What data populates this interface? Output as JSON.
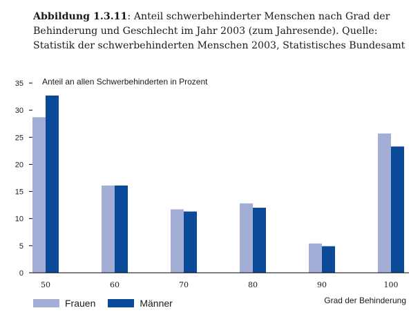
{
  "caption": {
    "label": "Abbildung 1.3.11",
    "text": ": Anteil schwerbehinderter Menschen nach Grad der Behinderung und Geschlecht im Jahr 2003 (zum Jahresende). Quelle: Statistik der schwerbehinderten Menschen 2003, Statistisches Bundesamt"
  },
  "colors": {
    "frauen": "#a3aed6",
    "maenner": "#0b4a99",
    "axis": "#000000"
  },
  "chart_data": {
    "type": "bar",
    "categories": [
      "50",
      "60",
      "70",
      "80",
      "90",
      "100"
    ],
    "series": [
      {
        "name": "Frauen",
        "values": [
          28.7,
          16.1,
          11.7,
          12.8,
          5.4,
          25.7
        ]
      },
      {
        "name": "Männer",
        "values": [
          32.7,
          16.1,
          11.3,
          12.0,
          4.9,
          23.3
        ]
      }
    ],
    "ylabel": "Anteil an allen Schwerbehinderten in Prozent",
    "xlabel": "Grad der Behinderung",
    "ylim": [
      0,
      35
    ],
    "yticks": [
      0,
      5,
      10,
      15,
      20,
      25,
      30,
      35
    ],
    "grid": false,
    "legend": "bottom-left"
  }
}
